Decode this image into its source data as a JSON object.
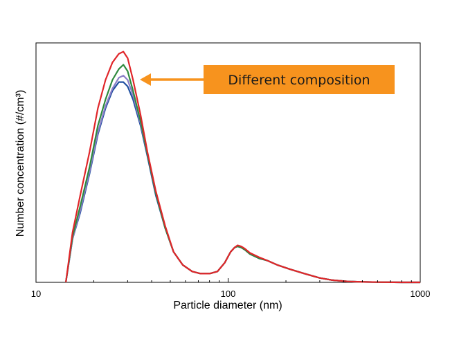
{
  "chart_data": {
    "type": "line",
    "x_scale": "log",
    "xlabel": "Particle diameter (nm)",
    "ylabel": "Number concentration (#/cm³)",
    "xlim": [
      10,
      1000
    ],
    "ylim": [
      0,
      1.1
    ],
    "y_tick_labels_shown": false,
    "x_ticks": [
      {
        "value": 10,
        "label": "10"
      },
      {
        "value": 100,
        "label": "100"
      },
      {
        "value": 1000,
        "label": "1000"
      }
    ],
    "grid": false,
    "legend": "none",
    "annotation": {
      "text": "Different composition",
      "target": {
        "x": 30,
        "y": 0.96
      },
      "box_color": "#f7931e",
      "arrow_color": "#f7931e"
    },
    "series": [
      {
        "color": "#1f4fa0",
        "x": [
          14.3,
          15.5,
          17,
          19,
          21,
          23,
          25,
          27,
          28.5,
          30,
          32,
          35,
          38,
          42,
          47,
          52,
          58,
          65,
          72,
          80,
          88,
          96,
          103,
          108,
          112,
          117,
          122,
          130,
          145,
          160,
          180,
          210,
          250,
          300,
          350,
          420,
          500,
          600,
          800,
          1000
        ],
        "y": [
          0.0,
          0.2,
          0.32,
          0.5,
          0.68,
          0.8,
          0.88,
          0.92,
          0.92,
          0.9,
          0.84,
          0.72,
          0.58,
          0.4,
          0.25,
          0.14,
          0.08,
          0.05,
          0.04,
          0.04,
          0.05,
          0.09,
          0.14,
          0.16,
          0.165,
          0.16,
          0.15,
          0.13,
          0.11,
          0.1,
          0.08,
          0.06,
          0.04,
          0.02,
          0.01,
          0.004,
          0.002,
          0.001,
          0.0,
          0.0
        ]
      },
      {
        "color": "#8b7fc7",
        "x": [
          14.3,
          15.5,
          17,
          19,
          21,
          23,
          25,
          27,
          28.5,
          30,
          32,
          35,
          38,
          42,
          47,
          52,
          58,
          65,
          72,
          80,
          88,
          96,
          103,
          108,
          112,
          117,
          122,
          130,
          145,
          160,
          180,
          210,
          250,
          300,
          350,
          420,
          500,
          600,
          800,
          1000
        ],
        "y": [
          0.0,
          0.2,
          0.33,
          0.51,
          0.69,
          0.81,
          0.89,
          0.94,
          0.95,
          0.93,
          0.86,
          0.73,
          0.59,
          0.41,
          0.25,
          0.14,
          0.08,
          0.05,
          0.04,
          0.04,
          0.05,
          0.09,
          0.14,
          0.16,
          0.165,
          0.16,
          0.15,
          0.13,
          0.11,
          0.1,
          0.08,
          0.06,
          0.04,
          0.02,
          0.01,
          0.004,
          0.002,
          0.001,
          0.0,
          0.0
        ]
      },
      {
        "color": "#2e8a3e",
        "x": [
          14.3,
          15.5,
          17,
          19,
          21,
          23,
          25,
          27,
          28.5,
          30,
          32,
          35,
          38,
          42,
          47,
          52,
          58,
          65,
          72,
          80,
          88,
          96,
          103,
          108,
          112,
          117,
          122,
          130,
          145,
          160,
          180,
          210,
          250,
          300,
          350,
          420,
          500,
          600,
          800,
          1000
        ],
        "y": [
          0.0,
          0.21,
          0.35,
          0.53,
          0.72,
          0.84,
          0.93,
          0.98,
          1.0,
          0.97,
          0.88,
          0.74,
          0.59,
          0.41,
          0.25,
          0.14,
          0.08,
          0.05,
          0.04,
          0.04,
          0.05,
          0.09,
          0.14,
          0.16,
          0.165,
          0.16,
          0.15,
          0.13,
          0.11,
          0.1,
          0.08,
          0.06,
          0.04,
          0.02,
          0.01,
          0.004,
          0.002,
          0.001,
          0.0,
          0.0
        ]
      },
      {
        "color": "#e0262a",
        "x": [
          14.3,
          15.5,
          17,
          19,
          21,
          23,
          25,
          27,
          28.5,
          30,
          32,
          35,
          38,
          42,
          47,
          52,
          58,
          65,
          72,
          80,
          88,
          96,
          103,
          108,
          112,
          117,
          122,
          130,
          145,
          160,
          180,
          210,
          250,
          300,
          350,
          420,
          500,
          600,
          800,
          1000
        ],
        "y": [
          0.0,
          0.23,
          0.4,
          0.6,
          0.8,
          0.93,
          1.01,
          1.05,
          1.06,
          1.03,
          0.93,
          0.77,
          0.6,
          0.42,
          0.26,
          0.14,
          0.08,
          0.05,
          0.04,
          0.04,
          0.05,
          0.09,
          0.14,
          0.16,
          0.17,
          0.165,
          0.155,
          0.135,
          0.115,
          0.1,
          0.08,
          0.06,
          0.04,
          0.02,
          0.01,
          0.004,
          0.002,
          0.001,
          0.0,
          0.0
        ]
      }
    ]
  }
}
